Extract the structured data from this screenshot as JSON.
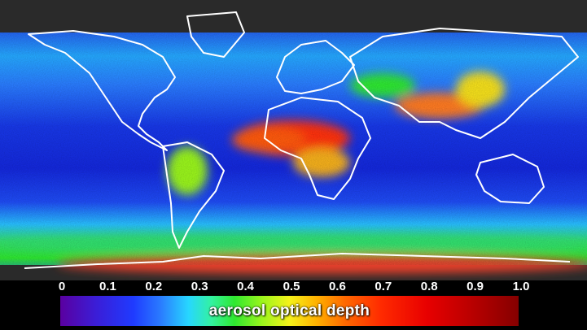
{
  "map": {
    "type": "global aerosol optical depth map",
    "colors": {
      "ocean_clear": "#1b2cf0",
      "land_mask": "#2a2a2a",
      "coastline": "#ffffff",
      "sahara_plume": "#ff3a10",
      "asia_haze": "#ff7a20",
      "southern_ocean": "#33e070",
      "antarctica": "#e8402a"
    }
  },
  "legend": {
    "title": "aerosol optical depth",
    "ticks": [
      "0",
      "0.1",
      "0.2",
      "0.3",
      "0.4",
      "0.5",
      "0.6",
      "0.7",
      "0.8",
      "0.9",
      "1.0"
    ],
    "range": [
      0,
      1.0
    ],
    "colormap": [
      "#5a00a0",
      "#1f3bff",
      "#27d7ff",
      "#2fe830",
      "#f5f21a",
      "#ff6a00",
      "#e80000",
      "#850000"
    ]
  }
}
